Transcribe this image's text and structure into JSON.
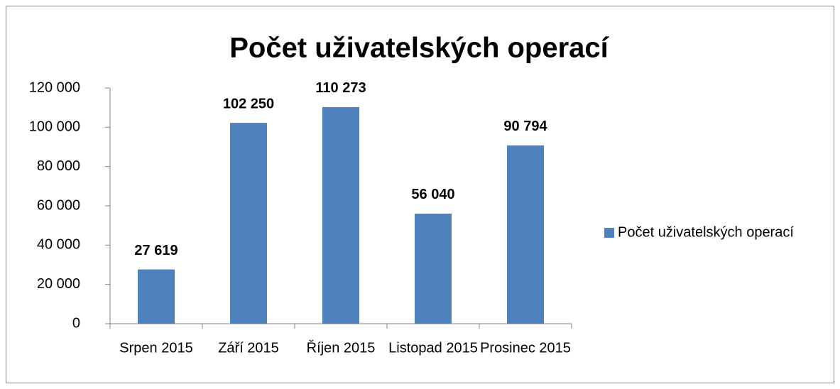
{
  "chart_data": {
    "type": "bar",
    "title": "Počet uživatelských operací",
    "categories": [
      "Srpen 2015",
      "Září 2015",
      "Říjen 2015",
      "Listopad 2015",
      "Prosinec 2015"
    ],
    "series": [
      {
        "name": "Počet uživatelských operací",
        "color": "#4f81bd",
        "values": [
          27619,
          102250,
          110273,
          56040,
          90794
        ],
        "value_labels": [
          "27 619",
          "102 250",
          "110 273",
          "56 040",
          "90 794"
        ]
      }
    ],
    "ylim": [
      0,
      120000
    ],
    "yticks": [
      0,
      {
        "value": 20000,
        "label": "20 000"
      },
      {
        "value": 40000,
        "label": "40 000"
      },
      {
        "value": 60000,
        "label": "60 000"
      },
      {
        "value": 80000,
        "label": "80 000"
      },
      {
        "value": 100000,
        "label": "100 000"
      },
      {
        "value": 120000,
        "label": "120 000"
      }
    ],
    "legend": "right"
  }
}
